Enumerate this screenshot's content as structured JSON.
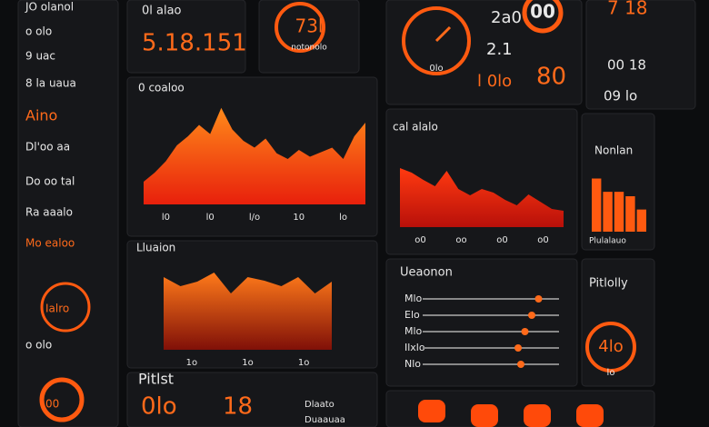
{
  "sidebar": {
    "items": [
      "JO olanol",
      "o olo",
      "9 uac",
      "8 la uaua",
      "Aino",
      "Dl'oo aa",
      "Do oo tal",
      "Ra aaalo",
      "Mo ealoo",
      "Ialro",
      "o olo",
      "00"
    ]
  },
  "top": {
    "stat_label": "0l alao",
    "stat_value": "5.18.151",
    "gauge_value": "73l",
    "gauge_label": "notonolo",
    "clock_labels": [
      "0lo",
      "2a0",
      "2.1",
      "l 0lo"
    ],
    "badge": "00",
    "big": "80",
    "right": [
      "7 18",
      "00 18",
      "09 lo"
    ]
  },
  "chart_data": [
    {
      "type": "area",
      "title": "0 coaloo",
      "values": [
        20,
        28,
        38,
        52,
        60,
        70,
        62,
        85,
        66,
        56,
        50,
        58,
        45,
        40,
        48,
        42,
        46,
        50,
        40,
        60,
        72
      ],
      "xlabels": [
        "l0",
        "l0",
        "l/o",
        "10",
        "lo"
      ],
      "ylim": [
        0,
        100
      ],
      "color": "#ff5a10"
    },
    {
      "type": "area",
      "title": "cal alalo",
      "values": [
        65,
        60,
        52,
        45,
        62,
        42,
        35,
        42,
        38,
        30,
        24,
        36,
        28,
        20,
        18
      ],
      "xlabels": [
        "o0",
        "oo",
        "o0",
        "o0"
      ],
      "ylim": [
        0,
        100
      ],
      "color": "#e8200c"
    },
    {
      "type": "bar",
      "title": "Nonlan",
      "values": [
        60,
        45,
        45,
        40,
        25
      ],
      "footer": "Plulalauo",
      "ylim": [
        0,
        100
      ],
      "color": "#ff5a10"
    },
    {
      "type": "area",
      "title": "Lluaion",
      "values": [
        80,
        70,
        75,
        85,
        62,
        80,
        76,
        70,
        80,
        62,
        75
      ],
      "xlabels": [
        "1o",
        "1o",
        "1o"
      ],
      "ylim": [
        0,
        100
      ],
      "color": "#ff4a0a"
    },
    {
      "type": "slider",
      "title": "Ueaonon",
      "categories": [
        "Mlo",
        "Elo",
        "Mlo",
        "Ilxlo",
        "Nlo"
      ],
      "values": [
        85,
        80,
        75,
        70,
        72
      ],
      "xlim": [
        0,
        100
      ],
      "color": "#ff6a1a"
    }
  ],
  "gauge2": {
    "title": "Pitlolly",
    "value": "4lo",
    "sub": "lo"
  },
  "bottom": {
    "title": "Pitlst",
    "value1": "0lo",
    "value2": "18",
    "note1": "Dlaato",
    "note2": "Duaauaa"
  }
}
